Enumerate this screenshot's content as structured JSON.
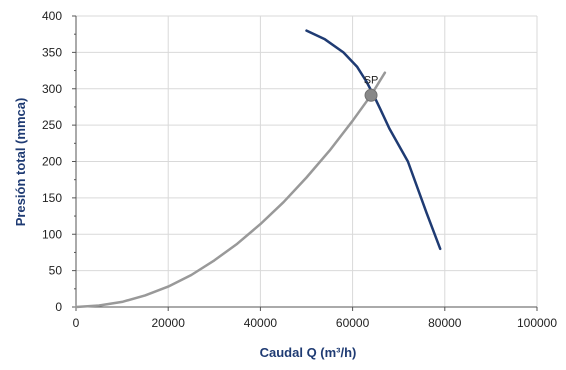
{
  "chart_data": {
    "type": "line",
    "xlabel": "Caudal Q (m³/h)",
    "ylabel": "Presión total  (mmca)",
    "xlim": [
      0,
      100000
    ],
    "ylim": [
      0,
      400
    ],
    "xticks": [
      0,
      20000,
      40000,
      60000,
      80000,
      100000
    ],
    "yticks": [
      0,
      50,
      100,
      150,
      200,
      250,
      300,
      350,
      400
    ],
    "xtick_labels": [
      "0",
      "20000",
      "40000",
      "60000",
      "80000",
      "100000"
    ],
    "ytick_labels": [
      "0",
      "50",
      "100",
      "150",
      "200",
      "250",
      "300",
      "350",
      "400"
    ],
    "grid": "both",
    "series": [
      {
        "color": "#1f3b73",
        "points": [
          [
            50000,
            380
          ],
          [
            54000,
            368
          ],
          [
            58000,
            350
          ],
          [
            61000,
            330
          ],
          [
            63000,
            310
          ],
          [
            64500,
            292
          ],
          [
            66000,
            272
          ],
          [
            68000,
            245
          ],
          [
            72000,
            200
          ],
          [
            76000,
            130
          ],
          [
            79000,
            80
          ]
        ]
      },
      {
        "color": "#999999",
        "points": [
          [
            0,
            0
          ],
          [
            5000,
            2
          ],
          [
            10000,
            7
          ],
          [
            15000,
            16
          ],
          [
            20000,
            28
          ],
          [
            25000,
            44
          ],
          [
            30000,
            64
          ],
          [
            35000,
            87
          ],
          [
            40000,
            114
          ],
          [
            45000,
            144
          ],
          [
            50000,
            178
          ],
          [
            55000,
            215
          ],
          [
            60000,
            256
          ],
          [
            64000,
            291
          ],
          [
            67000,
            322
          ]
        ]
      }
    ],
    "annotations": [
      {
        "text": "SP",
        "x": 64000,
        "y": 291
      }
    ],
    "marker_color": "#888888"
  }
}
